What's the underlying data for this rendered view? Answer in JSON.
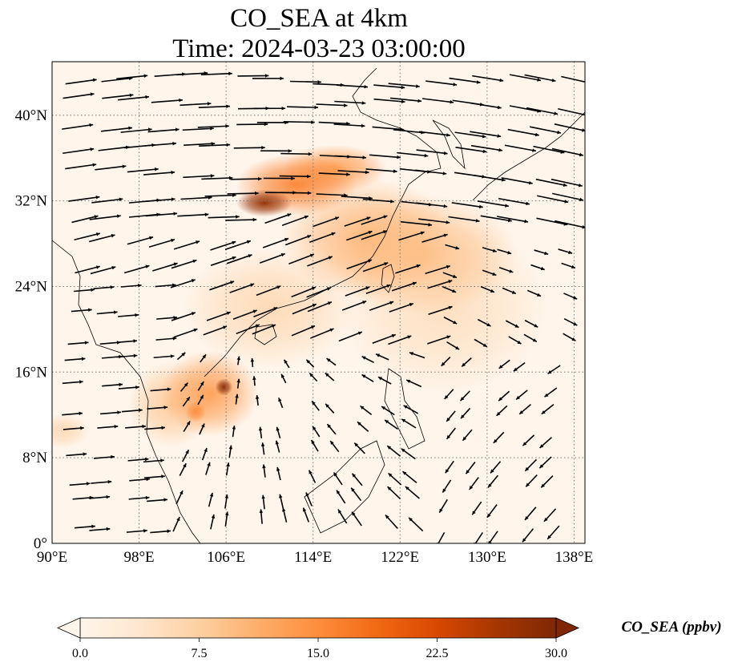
{
  "title_line1": "CO_SEA at 4km",
  "title_line2": "Time: 2024-03-23 03:00:00",
  "map": {
    "lon_range": [
      90,
      139
    ],
    "lat_range": [
      0,
      45
    ],
    "gridlines": true,
    "lon_ticks": [
      "90°E",
      "98°E",
      "106°E",
      "114°E",
      "122°E",
      "130°E",
      "138°E"
    ],
    "lon_tick_values": [
      90,
      98,
      106,
      114,
      122,
      130,
      138
    ],
    "lat_ticks": [
      "0°",
      "8°N",
      "16°N",
      "24°N",
      "32°N",
      "40°N"
    ],
    "lat_tick_values": [
      0,
      8,
      16,
      24,
      32,
      40
    ],
    "background_color": "#fff5eb",
    "plumes": [
      {
        "lon": 109.5,
        "lat": 31.8,
        "value": 28,
        "rlon": 1.6,
        "rlat": 0.8
      },
      {
        "lon": 112.5,
        "lat": 33.5,
        "value": 16,
        "rlon": 3.5,
        "rlat": 1.8
      },
      {
        "lon": 116.0,
        "lat": 35.0,
        "value": 13,
        "rlon": 3.0,
        "rlat": 1.4
      },
      {
        "lon": 119.0,
        "lat": 28.5,
        "value": 10,
        "rlon": 5.0,
        "rlat": 3.5
      },
      {
        "lon": 124.0,
        "lat": 27.0,
        "value": 9,
        "rlon": 5.5,
        "rlat": 3.5
      },
      {
        "lon": 126.0,
        "lat": 22.0,
        "value": 5,
        "rlon": 6.0,
        "rlat": 5.0
      },
      {
        "lon": 105.8,
        "lat": 14.6,
        "value": 29,
        "rlon": 0.5,
        "rlat": 0.5
      },
      {
        "lon": 104.5,
        "lat": 14.0,
        "value": 13,
        "rlon": 2.8,
        "rlat": 2.5
      },
      {
        "lon": 103.2,
        "lat": 12.3,
        "value": 15,
        "rlon": 0.6,
        "rlat": 0.6
      },
      {
        "lon": 101.0,
        "lat": 13.0,
        "value": 8,
        "rlon": 2.5,
        "rlat": 2.5
      },
      {
        "lon": 91.0,
        "lat": 10.5,
        "value": 6,
        "rlon": 1.5,
        "rlat": 1.0
      },
      {
        "lon": 110.0,
        "lat": 22.0,
        "value": 6,
        "rlon": 5.0,
        "rlat": 3.5
      }
    ]
  },
  "colorbar": {
    "label": "CO_SEA (ppbv)",
    "ticks": [
      "0.0",
      "7.5",
      "15.0",
      "22.5",
      "30.0"
    ],
    "tick_values": [
      0,
      7.5,
      15,
      22.5,
      30
    ],
    "range": [
      0,
      30
    ],
    "extend": "both",
    "colors": [
      "#fff5eb",
      "#fee6ce",
      "#fdd0a2",
      "#fdae6b",
      "#fd8d3c",
      "#f16913",
      "#d94801",
      "#a63603",
      "#7f2704"
    ]
  }
}
